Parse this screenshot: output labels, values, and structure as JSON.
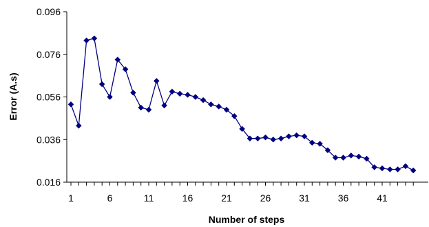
{
  "chart_data": {
    "type": "line",
    "title": "",
    "xlabel": "Number of steps",
    "ylabel": "Error (A.s)",
    "x_ticks": [
      "1",
      "6",
      "11",
      "16",
      "21",
      "26",
      "31",
      "36",
      "41"
    ],
    "y_ticks": [
      "0.016",
      "0.036",
      "0.056",
      "0.076",
      "0.096"
    ],
    "xlim": [
      1,
      45
    ],
    "ylim": [
      0.016,
      0.096
    ],
    "grid": false,
    "legend": "none",
    "series": [
      {
        "color": "#000080",
        "marker": "diamond",
        "x": [
          1,
          2,
          3,
          4,
          5,
          6,
          7,
          8,
          9,
          10,
          11,
          12,
          13,
          14,
          15,
          16,
          17,
          18,
          19,
          20,
          21,
          22,
          23,
          24,
          25,
          26,
          27,
          28,
          29,
          30,
          31,
          32,
          33,
          34,
          35,
          36,
          37,
          38,
          39,
          40,
          41,
          42,
          43,
          44,
          45
        ],
        "values": [
          0.0525,
          0.0425,
          0.0825,
          0.0835,
          0.062,
          0.056,
          0.0735,
          0.069,
          0.058,
          0.051,
          0.05,
          0.0635,
          0.052,
          0.0585,
          0.0575,
          0.057,
          0.056,
          0.0545,
          0.0525,
          0.0515,
          0.05,
          0.047,
          0.041,
          0.0365,
          0.0365,
          0.037,
          0.036,
          0.0365,
          0.0375,
          0.038,
          0.0375,
          0.0345,
          0.034,
          0.031,
          0.0275,
          0.0275,
          0.0285,
          0.028,
          0.027,
          0.023,
          0.0225,
          0.022,
          0.022,
          0.0235,
          0.0215
        ]
      }
    ]
  }
}
